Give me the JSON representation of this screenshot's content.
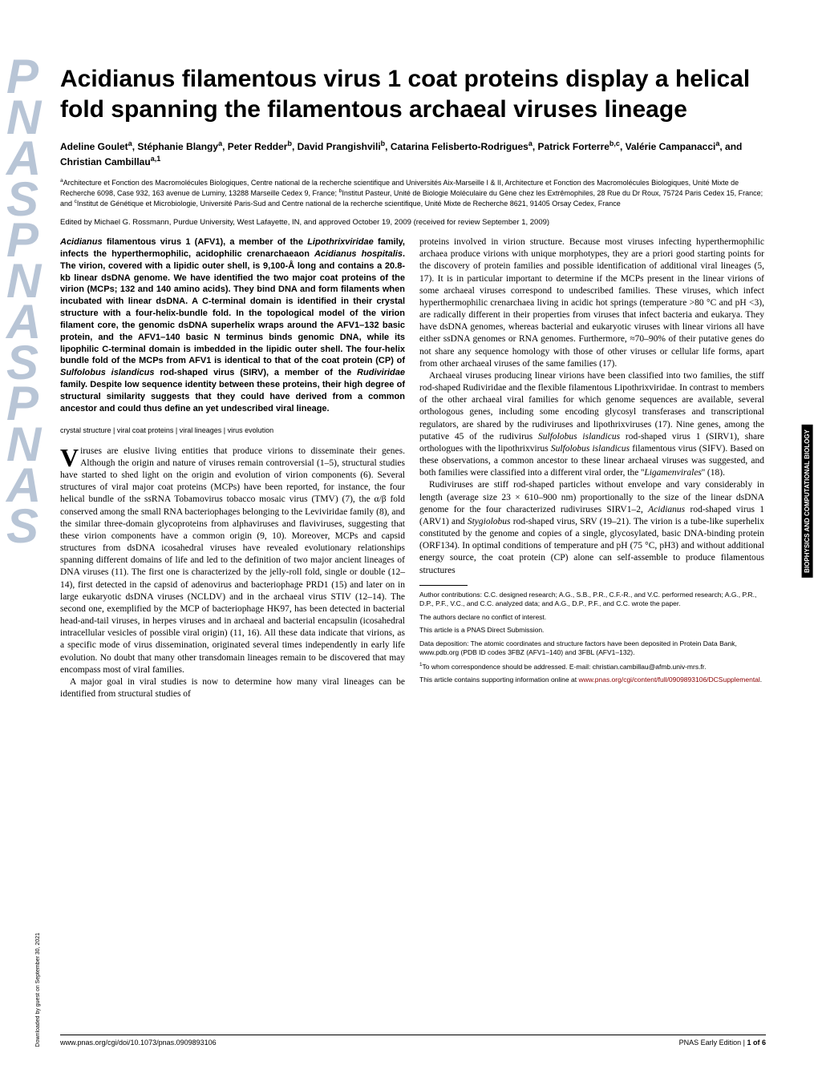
{
  "journal": {
    "vertical_letters": [
      "P",
      "N",
      "A",
      "S",
      "P",
      "N",
      "A",
      "S",
      "P",
      "N",
      "A",
      "S"
    ],
    "letter_color": "#b8c5d6"
  },
  "title": "Acidianus filamentous virus 1 coat proteins display a helical fold spanning the filamentous archaeal viruses lineage",
  "authors_html": "Adeline Goulet<sup>a</sup>, Stéphanie Blangy<sup>a</sup>, Peter Redder<sup>b</sup>, David Prangishvili<sup>b</sup>, Catarina Felisberto-Rodrigues<sup>a</sup>, Patrick Forterre<sup>b,c</sup>, Valérie Campanacci<sup>a</sup>, and Christian Cambillau<sup>a,1</sup>",
  "affiliations_html": "<sup>a</sup>Architecture et Fonction des Macromolécules Biologiques, Centre national de la recherche scientifique and Universités Aix-Marseille I & II, Architecture et Fonction des Macromolécules Biologiques, Unité Mixte de Recherche 6098, Case 932, 163 avenue de Luminy, 13288 Marseille Cedex 9, France; <sup>b</sup>Institut Pasteur, Unité de Biologie Moléculaire du Gène chez les Extrêmophiles, 28 Rue du Dr Roux, 75724 Paris Cedex 15, France; and <sup>c</sup>Institut de Génétique et Microbiologie, Université Paris-Sud and Centre national de la recherche scientifique, Unité Mixte de Recherche 8621, 91405 Orsay Cedex, France",
  "edited_by": "Edited by Michael G. Rossmann, Purdue University, West Lafayette, IN, and approved October 19, 2009 (received for review September 1, 2009)",
  "abstract_html": "<i>Acidianus</i> filamentous virus 1 (AFV1), a member of the <i>Lipothrixviridae</i> family, infects the hyperthermophilic, acidophilic crenarchaeaon <i>Acidianus hospitalis</i>. The virion, covered with a lipidic outer shell, is 9,100-Å long and contains a 20.8-kb linear dsDNA genome. We have identified the two major coat proteins of the virion (MCPs; 132 and 140 amino acids). They bind DNA and form filaments when incubated with linear dsDNA. A C-terminal domain is identified in their crystal structure with a four-helix-bundle fold. In the topological model of the virion filament core, the genomic dsDNA superhelix wraps around the AFV1–132 basic protein, and the AFV1–140 basic N terminus binds genomic DNA, while its lipophilic C-terminal domain is imbedded in the lipidic outer shell. The four-helix bundle fold of the MCPs from AFV1 is identical to that of the coat protein (CP) of <i>Sulfolobus islandicus</i> rod-shaped virus (SIRV), a member of the <i>Rudiviridae</i> family. Despite low sequence identity between these proteins, their high degree of structural similarity suggests that they could have derived from a common ancestor and could thus define an yet undescribed viral lineage.",
  "keywords": "crystal structure | viral coat proteins | viral lineages | virus evolution",
  "body_left_p1_html": "iruses are elusive living entities that produce virions to disseminate their genes. Although the origin and nature of viruses remain controversial (1–5), structural studies have started to shed light on the origin and evolution of virion components (6). Several structures of viral major coat proteins (MCPs) have been reported, for instance, the four helical bundle of the ssRNA Tobamovirus tobacco mosaic virus (TMV) (7), the α/β fold conserved among the small RNA bacteriophages belonging to the Leviviridae family (8), and the similar three-domain glycoproteins from alphaviruses and flaviviruses, suggesting that these virion components have a common origin (9, 10). Moreover, MCPs and capsid structures from dsDNA icosahedral viruses have revealed evolutionary relationships spanning different domains of life and led to the definition of two major ancient lineages of DNA viruses (11). The first one is characterized by the jelly-roll fold, single or double (12–14), first detected in the capsid of adenovirus and bacteriophage PRD1 (15) and later on in large eukaryotic dsDNA viruses (NCLDV) and in the archaeal virus STIV (12–14). The second one, exemplified by the MCP of bacteriophage HK97, has been detected in bacterial head-and-tail viruses, in herpes viruses and in archaeal and bacterial encapsulin (icosahedral intracellular vesicles of possible viral origin) (11, 16). All these data indicate that virions, as a specific mode of virus dissemination, originated several times independently in early life evolution. No doubt that many other transdomain lineages remain to be discovered that may encompass most of viral families.",
  "body_left_p2": "A major goal in viral studies is now to determine how many viral lineages can be identified from structural studies of",
  "body_right_p1_html": "proteins involved in virion structure. Because most viruses infecting hyperthermophilic archaea produce virions with unique morphotypes, they are a priori good starting points for the discovery of protein families and possible identification of additional viral lineages (5, 17). It is in particular important to determine if the MCPs present in the linear virions of some archaeal viruses correspond to undescribed families. These viruses, which infect hyperthermophilic crenarchaea living in acidic hot springs (temperature >80 °C and pH <3), are radically different in their properties from viruses that infect bacteria and eukarya. They have dsDNA genomes, whereas bacterial and eukaryotic viruses with linear virions all have either ssDNA genomes or RNA genomes. Furthermore, ≈70–90% of their putative genes do not share any sequence homology with those of other viruses or cellular life forms, apart from other archaeal viruses of the same families (17).",
  "body_right_p2_html": "Archaeal viruses producing linear virions have been classified into two families, the stiff rod-shaped Rudiviridae and the flexible filamentous Lipothrixviridae. In contrast to members of the other archaeal viral families for which genome sequences are available, several orthologous genes, including some encoding glycosyl transferases and transcriptional regulators, are shared by the rudiviruses and lipothrixviruses (17). Nine genes, among the putative 45 of the rudivirus <i>Sulfolobus islandicus</i> rod-shaped virus 1 (SIRV1), share orthologues with the lipothrixvirus <i>Sulfolobus islandicus</i> filamentous virus (SIFV). Based on these observations, a common ancestor to these linear archaeal viruses was suggested, and both families were classified into a different viral order, the ''<i>Ligamenvirales</i>'' (18).",
  "body_right_p3_html": "Rudiviruses are stiff rod-shaped particles without envelope and vary considerably in length (average size 23 × 610–900 nm) proportionally to the size of the linear dsDNA genome for the four characterized rudiviruses SIRV1–2, <i>Acidianus</i> rod-shaped virus 1 (ARV1) and <i>Stygiolobus</i> rod-shaped virus, SRV (19–21). The virion is a tube-like superhelix constituted by the genome and copies of a single, glycosylated, basic DNA-binding protein (ORF134). In optimal conditions of temperature and pH (75 °C, pH3) and without additional energy source, the coat protein (CP) alone can self-assemble to produce filamentous structures",
  "footer": {
    "author_contributions": "Author contributions: C.C. designed research; A.G., S.B., P.R., C.F.-R., and V.C. performed research; A.G., P.R., D.P., P.F., V.C., and C.C. analyzed data; and A.G., D.P., P.F., and C.C. wrote the paper.",
    "conflict": "The authors declare no conflict of interest.",
    "direct": "This article is a PNAS Direct Submission.",
    "deposition": "Data deposition: The atomic coordinates and structure factors have been deposited in Protein Data Bank, www.pdb.org (PDB ID codes 3FBZ (AFV1–140) and 3FBL (AFV1–132).",
    "correspondence_html": "<sup>1</sup>To whom correspondence should be addressed. E-mail: christian.cambillau@afmb.univ-mrs.fr.",
    "supporting_html": "This article contains supporting information online at <span class=\"link\">www.pnas.org/cgi/content/full/0909893106/DCSupplemental</span>."
  },
  "bottom_left": "www.pnas.org/cgi/doi/10.1073/pnas.0909893106",
  "bottom_right_html": "PNAS Early Edition | <b>1 of 6</b>",
  "side_label": "BIOPHYSICS AND COMPUTATIONAL BIOLOGY",
  "download_label": "Downloaded by guest on September 30, 2021"
}
